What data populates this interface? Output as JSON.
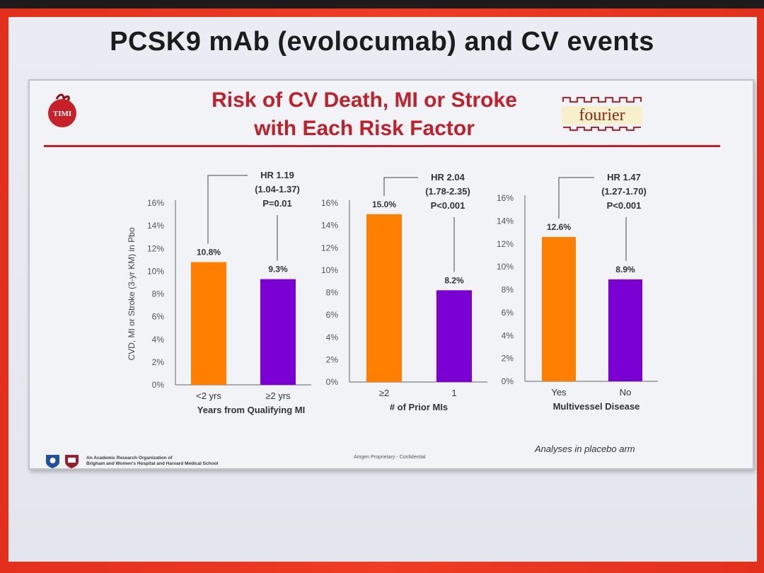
{
  "slide": {
    "title": "PCSK9 mAb (evolocumab) and CV events",
    "panel_title_line1": "Risk of CV Death, MI or Stroke",
    "panel_title_line2": "with Each Risk Factor",
    "timi_logo_text": "TIMI",
    "fourier_logo_text": "fourier",
    "footer_org_line1": "An Academic Research Organization of",
    "footer_org_line2": "Brigham and Women's Hospital and Harvard Medical School",
    "footer_confidential": "Amgen Proprietary - Confidential",
    "footer_note": "Analyses in placebo arm"
  },
  "colors": {
    "accent_red": "#c0202a",
    "orange_bar": "#ff7f00",
    "purple_bar": "#7a00d4"
  },
  "chart_data": [
    {
      "type": "bar",
      "categories": [
        "<2 yrs",
        "≥2 yrs"
      ],
      "values": [
        10.8,
        9.3
      ],
      "data_labels": [
        "10.8%",
        "9.3%"
      ],
      "bar_colors": [
        "#ff7f00",
        "#7a00d4"
      ],
      "xlabel": "Years from Qualifying MI",
      "ylabel": "CVD, MI or Stroke (3-yr KM) in Pbo",
      "ylim": [
        0,
        16
      ],
      "yticks": [
        "0%",
        "2%",
        "4%",
        "6%",
        "8%",
        "10%",
        "12%",
        "14%",
        "16%"
      ],
      "annotation": [
        "HR 1.19",
        "(1.04-1.37)",
        "P=0.01"
      ]
    },
    {
      "type": "bar",
      "categories": [
        "≥2",
        "1"
      ],
      "values": [
        15.0,
        8.2
      ],
      "data_labels": [
        "15.0%",
        "8.2%"
      ],
      "bar_colors": [
        "#ff7f00",
        "#7a00d4"
      ],
      "xlabel": "# of Prior MIs",
      "ylabel": "",
      "ylim": [
        0,
        16
      ],
      "yticks": [
        "0%",
        "2%",
        "4%",
        "6%",
        "8%",
        "10%",
        "12%",
        "14%",
        "16%"
      ],
      "annotation": [
        "HR 2.04",
        "(1.78-2.35)",
        "P<0.001"
      ]
    },
    {
      "type": "bar",
      "categories": [
        "Yes",
        "No"
      ],
      "values": [
        12.6,
        8.9
      ],
      "data_labels": [
        "12.6%",
        "8.9%"
      ],
      "bar_colors": [
        "#ff7f00",
        "#7a00d4"
      ],
      "xlabel": "Multivessel Disease",
      "ylabel": "",
      "ylim": [
        0,
        16
      ],
      "yticks": [
        "0%",
        "2%",
        "4%",
        "6%",
        "8%",
        "10%",
        "12%",
        "14%",
        "16%"
      ],
      "annotation": [
        "HR 1.47",
        "(1.27-1.70)",
        "P<0.001"
      ]
    }
  ]
}
